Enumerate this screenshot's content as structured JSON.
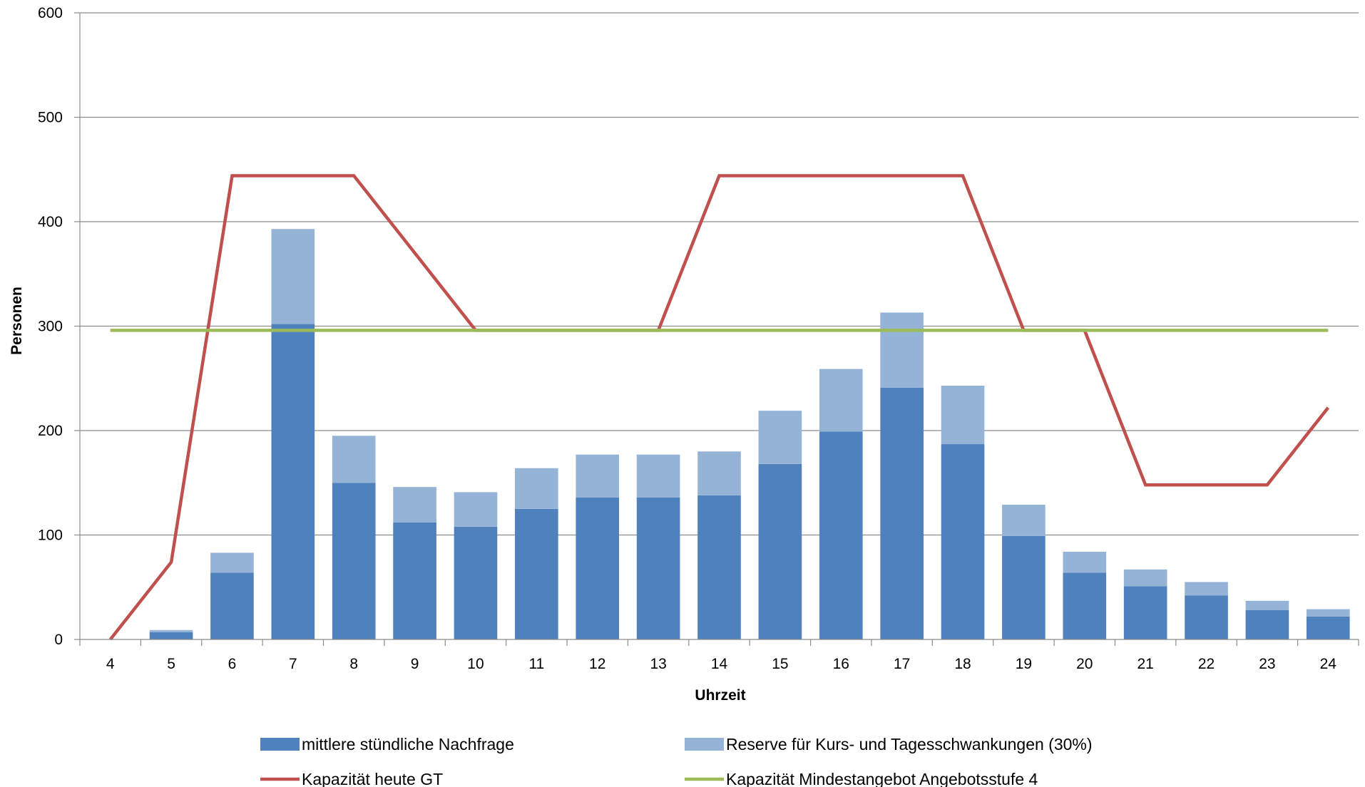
{
  "chart_data": {
    "type": "bar",
    "stacked": true,
    "title": "",
    "xlabel": "Uhrzeit",
    "ylabel": "Personen",
    "categories": [
      "4",
      "5",
      "6",
      "7",
      "8",
      "9",
      "10",
      "11",
      "12",
      "13",
      "14",
      "15",
      "16",
      "17",
      "18",
      "19",
      "20",
      "21",
      "22",
      "23",
      "24"
    ],
    "ylim": [
      0,
      600
    ],
    "yticks": [
      0,
      100,
      200,
      300,
      400,
      500,
      600
    ],
    "grid": true,
    "legend_position": "bottom",
    "bar_series": [
      {
        "name": "mittlere stündliche Nachfrage",
        "color": "#4f81bd",
        "values": [
          0,
          7,
          64,
          302,
          150,
          112,
          108,
          125,
          136,
          136,
          138,
          168,
          199,
          241,
          187,
          99,
          64,
          51,
          42,
          28,
          22
        ]
      },
      {
        "name": "Reserve für Kurs- und Tagesschwankungen (30%)",
        "color": "#95b3d7",
        "values": [
          0,
          2,
          19,
          91,
          45,
          34,
          33,
          39,
          41,
          41,
          42,
          51,
          60,
          72,
          56,
          30,
          20,
          16,
          13,
          9,
          7
        ]
      }
    ],
    "line_series": [
      {
        "name": "Kapazität heute GT",
        "color": "#c0504d",
        "values": [
          0,
          74,
          444,
          444,
          444,
          370,
          296,
          296,
          296,
          296,
          444,
          444,
          444,
          444,
          444,
          296,
          296,
          148,
          148,
          148,
          222
        ]
      },
      {
        "name": "Kapazität Mindestangebot Angebotsstufe 4",
        "color": "#9bbb59",
        "values": [
          296,
          296,
          296,
          296,
          296,
          296,
          296,
          296,
          296,
          296,
          296,
          296,
          296,
          296,
          296,
          296,
          296,
          296,
          296,
          296,
          296
        ]
      }
    ]
  }
}
